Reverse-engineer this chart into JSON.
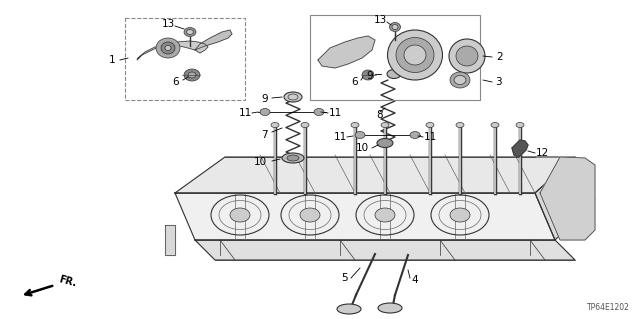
{
  "bg_color": "#ffffff",
  "fig_width": 6.4,
  "fig_height": 3.19,
  "part_code": "TP64E1202",
  "fr_label": "FR.",
  "dpi": 100
}
